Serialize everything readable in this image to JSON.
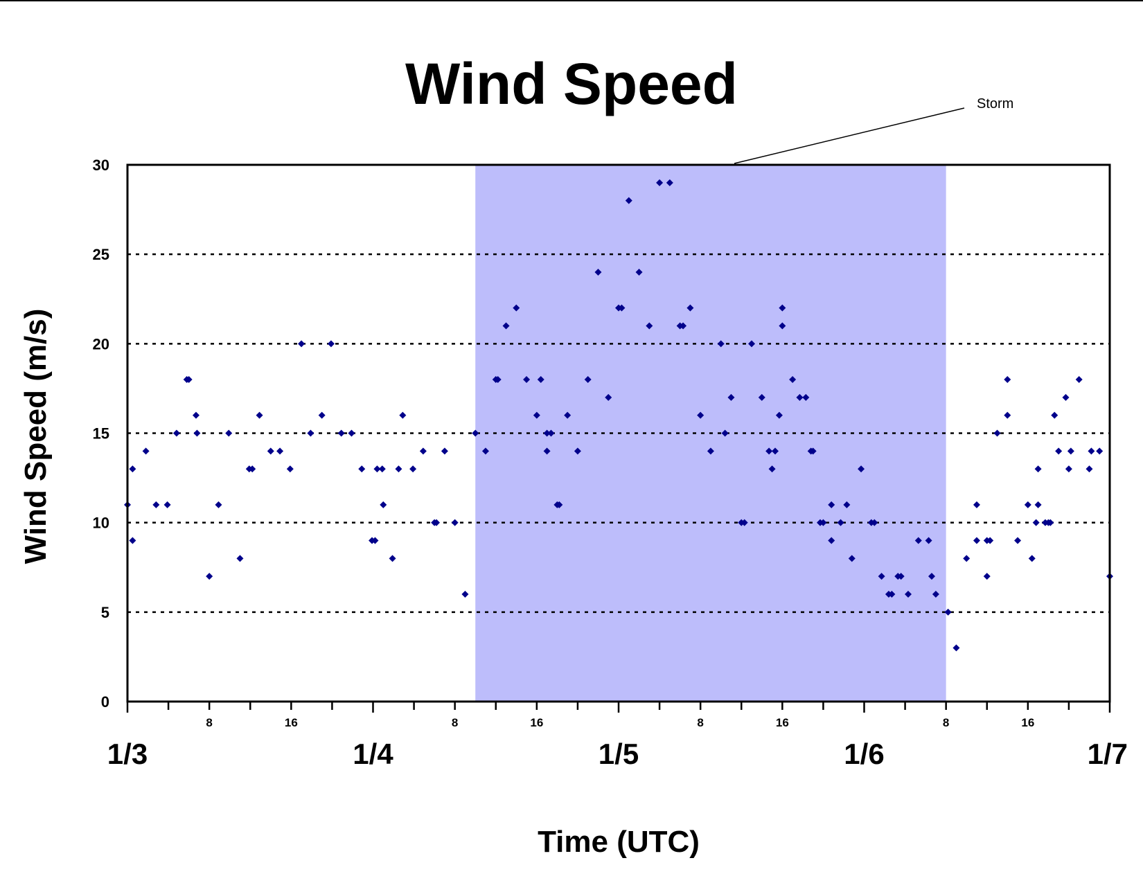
{
  "chart_data": {
    "type": "scatter",
    "title": "Wind Speed",
    "xlabel": "Time (UTC)",
    "ylabel": "Wind Speed (m/s)",
    "xlim": [
      "1/3 0:00",
      "1/7 0:00"
    ],
    "ylim": [
      0,
      30
    ],
    "y_ticks": [
      0,
      5,
      10,
      15,
      20,
      25,
      30
    ],
    "x_major_ticks": [
      "1/3",
      "1/4",
      "1/5",
      "1/6",
      "1/7"
    ],
    "x_minor_tick_labels": [
      "8",
      "16"
    ],
    "grid": "horizontal dotted",
    "marker_color": "#00008B",
    "shaded_region": {
      "label": "Storm",
      "start": "1/4 10:00",
      "end": "1/6 8:00",
      "color": "#BDBDFB"
    },
    "x_hours_from": "1/3 0:00",
    "series": [
      {
        "points": [
          [
            0,
            11
          ],
          [
            0.5,
            13
          ],
          [
            0.5,
            9
          ],
          [
            1.8,
            14
          ],
          [
            2.8,
            11
          ],
          [
            3.9,
            11
          ],
          [
            4.8,
            15
          ],
          [
            5.8,
            18
          ],
          [
            6,
            18
          ],
          [
            6.7,
            16
          ],
          [
            6.8,
            15
          ],
          [
            8,
            7
          ],
          [
            8.9,
            11
          ],
          [
            9.9,
            15
          ],
          [
            11,
            8
          ],
          [
            11.9,
            13
          ],
          [
            12.2,
            13
          ],
          [
            12.9,
            16
          ],
          [
            14,
            14
          ],
          [
            14.9,
            14
          ],
          [
            15.9,
            13
          ],
          [
            17,
            20
          ],
          [
            17.9,
            15
          ],
          [
            19,
            16
          ],
          [
            19.9,
            20
          ],
          [
            20.9,
            15
          ],
          [
            21.9,
            15
          ],
          [
            22.9,
            13
          ],
          [
            23.9,
            9
          ],
          [
            24.2,
            9
          ],
          [
            24.4,
            13
          ],
          [
            24.9,
            13
          ],
          [
            25,
            11
          ],
          [
            25.9,
            8
          ],
          [
            26.5,
            13
          ],
          [
            26.9,
            16
          ],
          [
            27.9,
            13
          ],
          [
            28.9,
            14
          ],
          [
            30,
            10
          ],
          [
            30.2,
            10
          ],
          [
            31,
            14
          ],
          [
            32,
            10
          ],
          [
            33,
            6
          ],
          [
            34,
            15
          ],
          [
            35,
            14
          ],
          [
            36,
            18
          ],
          [
            36.2,
            18
          ],
          [
            37,
            21
          ],
          [
            38,
            22
          ],
          [
            39,
            18
          ],
          [
            40,
            16
          ],
          [
            40.4,
            18
          ],
          [
            41,
            15
          ],
          [
            41,
            14
          ],
          [
            41.4,
            15
          ],
          [
            42,
            11
          ],
          [
            42.2,
            11
          ],
          [
            43,
            16
          ],
          [
            44,
            14
          ],
          [
            45,
            18
          ],
          [
            46,
            24
          ],
          [
            47,
            17
          ],
          [
            48,
            22
          ],
          [
            48.3,
            22
          ],
          [
            49,
            28
          ],
          [
            50,
            24
          ],
          [
            51,
            21
          ],
          [
            52,
            29
          ],
          [
            53,
            29
          ],
          [
            54,
            21
          ],
          [
            54.3,
            21
          ],
          [
            55,
            22
          ],
          [
            56,
            16
          ],
          [
            57,
            14
          ],
          [
            58,
            20
          ],
          [
            58.4,
            15
          ],
          [
            59,
            17
          ],
          [
            60,
            10
          ],
          [
            60.3,
            10
          ],
          [
            61,
            20
          ],
          [
            62,
            17
          ],
          [
            62.7,
            14
          ],
          [
            63,
            13
          ],
          [
            63.3,
            14
          ],
          [
            63.7,
            16
          ],
          [
            64,
            22
          ],
          [
            64,
            21
          ],
          [
            65,
            18
          ],
          [
            65.7,
            17
          ],
          [
            66.3,
            17
          ],
          [
            66.8,
            14
          ],
          [
            67,
            14
          ],
          [
            67.7,
            10
          ],
          [
            68,
            10
          ],
          [
            68.8,
            11
          ],
          [
            68.8,
            9
          ],
          [
            69.7,
            10
          ],
          [
            70.3,
            11
          ],
          [
            70.8,
            8
          ],
          [
            71.7,
            13
          ],
          [
            72.7,
            10
          ],
          [
            73,
            10
          ],
          [
            73.7,
            7
          ],
          [
            74.4,
            6
          ],
          [
            74.7,
            6
          ],
          [
            75.3,
            7
          ],
          [
            75.6,
            7
          ],
          [
            76.3,
            6
          ],
          [
            77.3,
            9
          ],
          [
            78.3,
            9
          ],
          [
            78.6,
            7
          ],
          [
            79,
            6
          ],
          [
            80.2,
            5
          ],
          [
            81,
            3
          ],
          [
            82,
            8
          ],
          [
            83,
            9
          ],
          [
            83,
            11
          ],
          [
            84,
            7
          ],
          [
            84,
            9
          ],
          [
            84.3,
            9
          ],
          [
            85,
            15
          ],
          [
            86,
            18
          ],
          [
            86,
            16
          ],
          [
            87,
            9
          ],
          [
            88,
            11
          ],
          [
            88.4,
            8
          ],
          [
            88.8,
            10
          ],
          [
            89,
            13
          ],
          [
            89,
            11
          ],
          [
            89.7,
            10
          ],
          [
            90,
            10
          ],
          [
            90.2,
            10
          ],
          [
            90.6,
            16
          ],
          [
            91,
            14
          ],
          [
            91.7,
            17
          ],
          [
            92,
            13
          ],
          [
            92.2,
            14
          ],
          [
            93,
            18
          ],
          [
            94,
            13
          ],
          [
            94.2,
            14
          ],
          [
            95,
            14
          ],
          [
            96,
            7
          ]
        ]
      }
    ]
  }
}
